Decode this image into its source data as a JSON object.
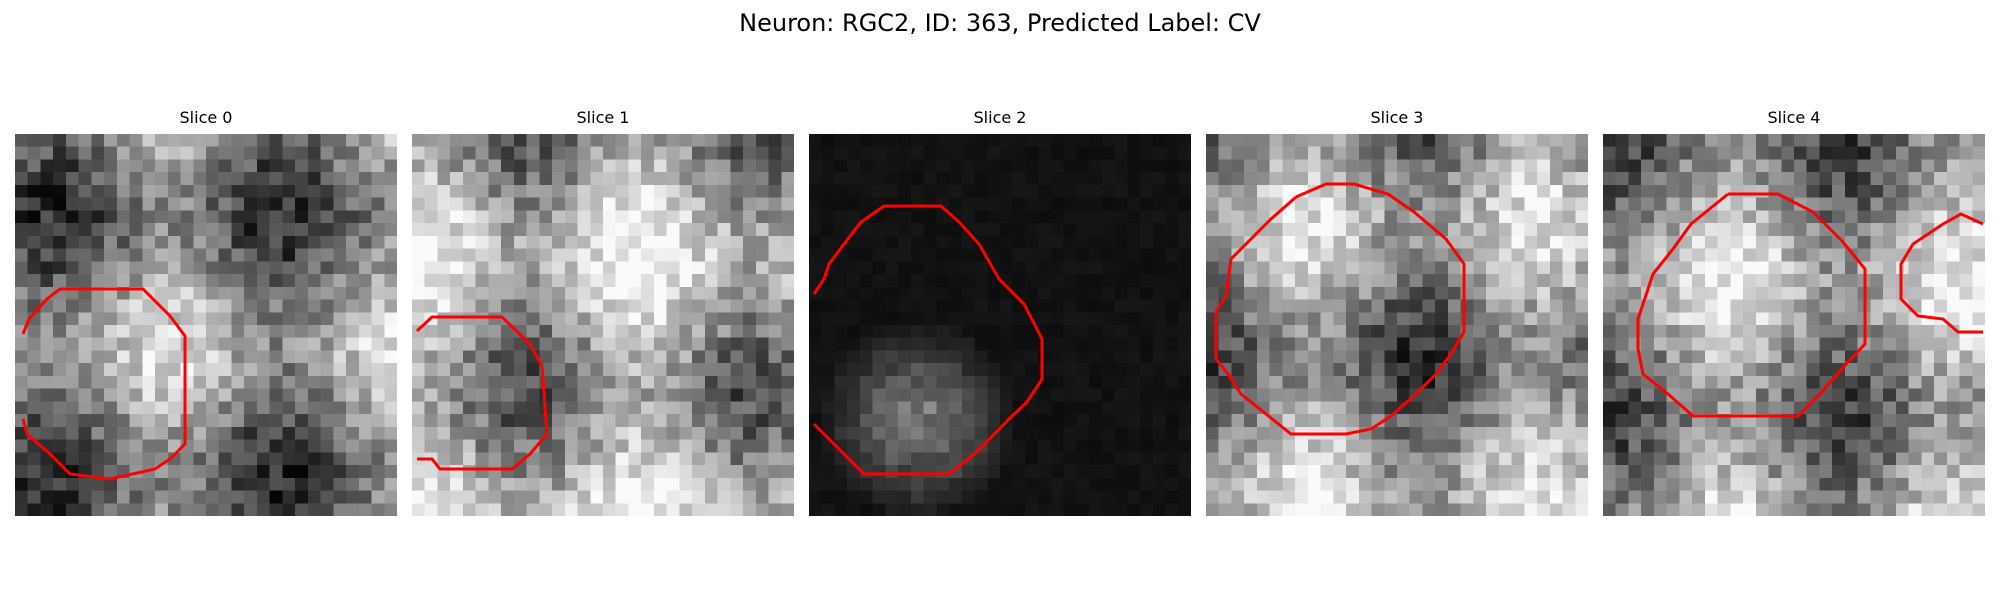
{
  "title": "Neuron: RGC2, ID: 363, Predicted Label: CV",
  "contour_color": "#ff0000",
  "panels": [
    {
      "label": "Slice 0",
      "seed": 11,
      "brightness": 0.52
    },
    {
      "label": "Slice 1",
      "seed": 23,
      "brightness": 0.66
    },
    {
      "label": "Slice 2",
      "seed": 37,
      "brightness": 0.06
    },
    {
      "label": "Slice 3",
      "seed": 51,
      "brightness": 0.55
    },
    {
      "label": "Slice 4",
      "seed": 67,
      "brightness": 0.6
    }
  ]
}
